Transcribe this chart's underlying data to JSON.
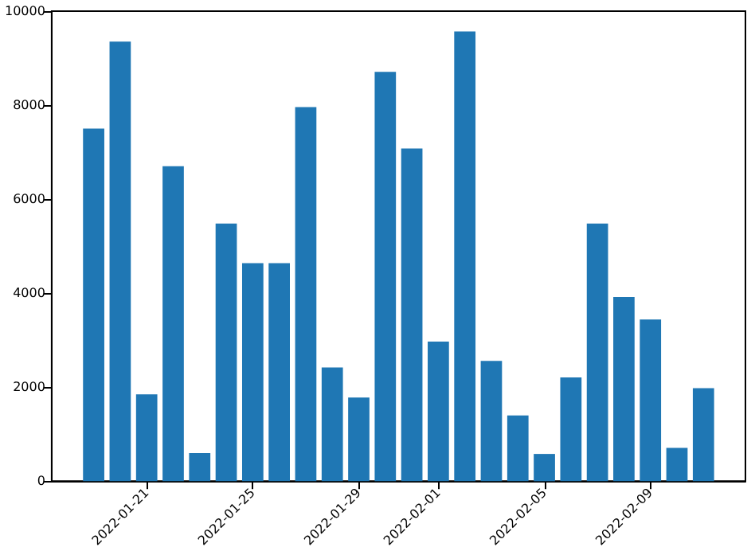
{
  "chart_data": {
    "type": "bar",
    "x": [
      "2022-01-19",
      "2022-01-20",
      "2022-01-21",
      "2022-01-22",
      "2022-01-23",
      "2022-01-24",
      "2022-01-25",
      "2022-01-26",
      "2022-01-27",
      "2022-01-28",
      "2022-01-29",
      "2022-01-30",
      "2022-01-31",
      "2022-02-01",
      "2022-02-02",
      "2022-02-03",
      "2022-02-04",
      "2022-02-05",
      "2022-02-06",
      "2022-02-07",
      "2022-02-08",
      "2022-02-09",
      "2022-02-10",
      "2022-02-11"
    ],
    "values": [
      7500,
      9350,
      1850,
      6700,
      600,
      5480,
      4640,
      4640,
      7960,
      2420,
      1780,
      8710,
      7080,
      2970,
      9570,
      2560,
      1400,
      580,
      2210,
      5480,
      3920,
      3440,
      710,
      1980
    ],
    "color": "#1f77b4",
    "xlim": [
      "2022-01-17T10:00",
      "2022-02-12T14:00"
    ],
    "xticks": [
      "2022-01-21",
      "2022-01-25",
      "2022-01-29",
      "2022-02-01",
      "2022-02-05",
      "2022-02-09"
    ],
    "ylim": [
      0,
      10000
    ],
    "yticks": [
      0,
      2000,
      4000,
      6000,
      8000,
      10000
    ],
    "grid": false
  }
}
